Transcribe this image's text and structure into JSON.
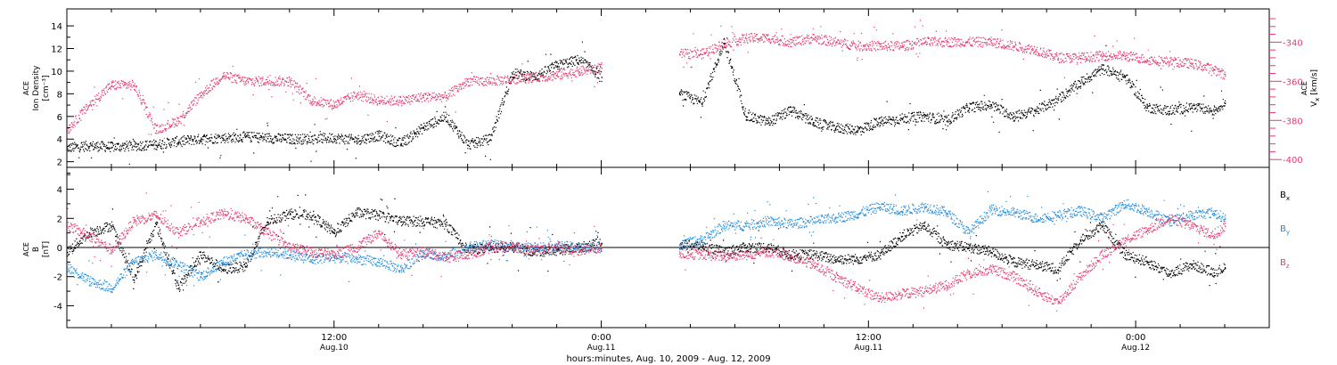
{
  "colors": {
    "black": "#000000",
    "pink": "#e63b6f",
    "blue": "#1f8ce0"
  },
  "xaxis": {
    "caption": "hours:minutes, Aug. 10, 2009 - Aug. 12, 2009",
    "major_ticks": [
      {
        "t": 12,
        "time": "12:00",
        "date": "Aug.10"
      },
      {
        "t": 24,
        "time": "0:00",
        "date": "Aug.11"
      },
      {
        "t": 36,
        "time": "12:00",
        "date": "Aug.11"
      },
      {
        "t": 48,
        "time": "0:00",
        "date": "Aug.12"
      }
    ],
    "range_hours": [
      0,
      54
    ],
    "minor_tick_hours": 2
  },
  "chart_data": [
    {
      "type": "scatter",
      "panel": "top",
      "left_axis": {
        "label_lines": [
          "ACE",
          "Ion Density"
        ],
        "unit": "[cm⁻³]",
        "range": [
          1.5,
          15.5
        ],
        "ticks": [
          2,
          4,
          6,
          8,
          10,
          12,
          14
        ],
        "tick_labels": [
          "2",
          "4",
          "6",
          "8",
          "10",
          "12",
          "14"
        ]
      },
      "right_axis": {
        "label_sup": "ACE",
        "label_main": "V",
        "label_sub": "x",
        "unit": "[km/s]",
        "range": [
          -404,
          -323
        ],
        "ticks": [
          -400,
          -380,
          -360,
          -340
        ],
        "tick_labels": [
          "-400",
          "-380",
          "-360",
          "-340"
        ],
        "color": "#e63b6f"
      },
      "series": [
        {
          "color": "#000000",
          "axis": "left",
          "x": [
            0,
            1,
            2,
            3,
            4,
            5,
            6,
            7,
            8,
            9,
            10,
            11,
            12,
            13,
            14,
            15,
            16,
            17,
            18,
            19,
            20,
            21,
            22,
            23,
            24,
            27.5,
            28.5,
            29.5,
            30.5,
            31.5,
            32.5,
            33.5,
            34.5,
            35.5,
            36.5,
            37.5,
            38.5,
            39.5,
            40.5,
            41.5,
            42.5,
            43.5,
            44.5,
            45.5,
            46.5,
            47.5,
            48.5,
            49.5,
            50.5,
            51.5,
            52
          ],
          "y": [
            3.2,
            3.4,
            3.3,
            3.4,
            3.5,
            3.8,
            4.0,
            4.1,
            4.2,
            4.1,
            4.0,
            4.0,
            4.1,
            3.9,
            4.3,
            3.6,
            5.0,
            6.0,
            3.5,
            4.0,
            9.8,
            9.5,
            10.5,
            11.0,
            9.5,
            8.0,
            7.2,
            12.5,
            6.0,
            5.5,
            6.5,
            5.5,
            5.0,
            4.8,
            5.5,
            5.8,
            6.0,
            5.6,
            6.8,
            7.0,
            6.0,
            6.5,
            7.5,
            9.0,
            10.2,
            9.5,
            6.8,
            6.5,
            6.8,
            6.5,
            7.2
          ]
        },
        {
          "color": "#e63b6f",
          "axis": "right",
          "x": [
            0,
            1,
            2,
            3,
            4,
            5,
            6,
            7,
            8,
            9,
            10,
            11,
            12,
            13,
            14,
            15,
            16,
            17,
            18,
            19,
            20,
            21,
            22,
            23,
            24,
            27.5,
            28.5,
            29.5,
            30.5,
            31.5,
            32.5,
            33.5,
            34.5,
            35.5,
            36.5,
            37.5,
            38.5,
            39.5,
            40.5,
            41.5,
            42.5,
            43.5,
            44.5,
            45.5,
            46.5,
            47.5,
            48.5,
            49.5,
            50.5,
            51.5,
            52
          ],
          "y": [
            -385,
            -372,
            -362,
            -362,
            -385,
            -380,
            -367,
            -357,
            -360,
            -360,
            -360,
            -370,
            -372,
            -367,
            -370,
            -370,
            -368,
            -368,
            -360,
            -360,
            -359,
            -358,
            -357,
            -355,
            -353,
            -346,
            -346,
            -341,
            -338,
            -338,
            -340,
            -338,
            -340,
            -342,
            -342,
            -342,
            -340,
            -340,
            -340,
            -340,
            -342,
            -344,
            -348,
            -348,
            -347,
            -347,
            -349,
            -350,
            -351,
            -354,
            -357
          ]
        }
      ]
    },
    {
      "type": "scatter",
      "panel": "bottom",
      "left_axis": {
        "label_lines": [
          "ACE",
          "B"
        ],
        "unit": "[nT]",
        "range": [
          -5.5,
          5.5
        ],
        "ticks": [
          -4,
          -2,
          0,
          2,
          4
        ],
        "tick_labels": [
          "-4",
          "-2",
          "0",
          "2",
          "4"
        ]
      },
      "zero_line": true,
      "legend": {
        "position": "right",
        "entries": [
          {
            "main": "B",
            "sub": "x",
            "color": "#000000"
          },
          {
            "main": "B",
            "sub": "y",
            "color": "#1f8ce0"
          },
          {
            "main": "B",
            "sub": "z",
            "color": "#e63b6f"
          }
        ]
      },
      "series": [
        {
          "name": "Bx",
          "color": "#000000",
          "x": [
            0,
            1,
            2,
            3,
            4,
            5,
            6,
            7,
            8,
            9,
            10,
            11,
            12,
            13,
            14,
            15,
            16,
            17,
            18,
            19,
            20,
            21,
            22,
            23,
            24,
            27.5,
            28.5,
            29.5,
            30.5,
            31.5,
            32.5,
            33.5,
            34.5,
            35.5,
            36.5,
            37.5,
            38.5,
            39.5,
            40.5,
            41.5,
            42.5,
            43.5,
            44.5,
            45.5,
            46.5,
            47.5,
            48.5,
            49.5,
            50.5,
            51.5,
            52
          ],
          "y": [
            -0.3,
            1.0,
            1.5,
            -2.2,
            1.6,
            -2.8,
            -0.5,
            -1.5,
            -1.3,
            1.8,
            2.3,
            2.2,
            1.0,
            2.4,
            2.2,
            1.8,
            1.8,
            1.6,
            -0.2,
            0.0,
            0.0,
            -0.3,
            -0.2,
            0.0,
            0.3,
            0.2,
            0.1,
            -0.3,
            0.0,
            0.0,
            -0.5,
            -0.5,
            -0.8,
            -0.8,
            -0.5,
            0.8,
            1.5,
            0.2,
            0.0,
            -0.3,
            -1.0,
            -1.2,
            -1.5,
            0.5,
            1.5,
            -0.5,
            -1.0,
            -1.8,
            -1.2,
            -1.7,
            -1.4
          ]
        },
        {
          "name": "By",
          "color": "#1f8ce0",
          "x": [
            0,
            1,
            2,
            3,
            4,
            5,
            6,
            7,
            8,
            9,
            10,
            11,
            12,
            13,
            14,
            15,
            16,
            17,
            18,
            19,
            20,
            21,
            22,
            23,
            24,
            27.5,
            28.5,
            29.5,
            30.5,
            31.5,
            32.5,
            33.5,
            34.5,
            35.5,
            36.5,
            37.5,
            38.5,
            39.5,
            40.5,
            41.5,
            42.5,
            43.5,
            44.5,
            45.5,
            46.5,
            47.5,
            48.5,
            49.5,
            50.5,
            51.5,
            52
          ],
          "y": [
            -1.3,
            -2.3,
            -2.8,
            -1.0,
            -0.5,
            -1.2,
            -2.0,
            -1.0,
            -0.5,
            -0.3,
            -0.5,
            -0.8,
            -0.7,
            -0.8,
            -1.0,
            -1.5,
            -0.4,
            -0.6,
            0.0,
            0.2,
            0.0,
            0.0,
            0.1,
            0.0,
            0.0,
            0.2,
            0.5,
            1.5,
            1.5,
            1.8,
            1.6,
            1.8,
            2.0,
            2.3,
            2.8,
            2.5,
            2.8,
            2.4,
            1.0,
            2.6,
            2.4,
            2.0,
            2.2,
            2.5,
            2.0,
            3.0,
            2.5,
            1.8,
            2.2,
            2.4,
            2.0
          ]
        },
        {
          "name": "Bz",
          "color": "#e63b6f",
          "x": [
            0,
            1,
            2,
            3,
            4,
            5,
            6,
            7,
            8,
            9,
            10,
            11,
            12,
            13,
            14,
            15,
            16,
            17,
            18,
            19,
            20,
            21,
            22,
            23,
            24,
            27.5,
            28.5,
            29.5,
            30.5,
            31.5,
            32.5,
            33.5,
            34.5,
            35.5,
            36.5,
            37.5,
            38.5,
            39.5,
            40.5,
            41.5,
            42.5,
            43.5,
            44.5,
            45.5,
            46.5,
            47.5,
            48.5,
            49.5,
            50.5,
            51.5,
            52
          ],
          "y": [
            1.5,
            0.8,
            -0.2,
            1.8,
            2.2,
            1.0,
            1.8,
            2.3,
            2.0,
            1.0,
            0.0,
            -0.3,
            -0.5,
            0.0,
            1.0,
            -0.5,
            -0.3,
            -0.7,
            -0.5,
            0.0,
            0.0,
            -0.2,
            0.0,
            -0.2,
            0.0,
            -0.4,
            -0.5,
            -0.6,
            -0.5,
            -0.3,
            -0.6,
            -1.2,
            -2.0,
            -2.8,
            -3.5,
            -3.2,
            -3.0,
            -2.6,
            -1.8,
            -1.5,
            -2.0,
            -3.0,
            -3.8,
            -2.0,
            -0.5,
            0.5,
            1.2,
            2.0,
            1.5,
            0.8,
            1.5
          ]
        }
      ]
    }
  ]
}
